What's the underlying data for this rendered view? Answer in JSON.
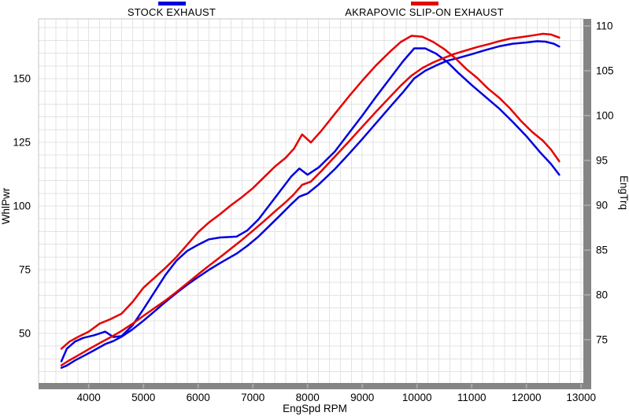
{
  "chart_data": {
    "type": "line",
    "title": "",
    "xlabel": "EngSpd  RPM",
    "ylabel_left": "WhlPwr",
    "ylabel_right": "EngTrq",
    "x_ticks": [
      4000,
      5000,
      6000,
      7000,
      8000,
      9000,
      10000,
      11000,
      12000,
      13000
    ],
    "left_ticks": [
      150,
      125,
      100,
      75,
      50
    ],
    "right_ticks": [
      110,
      105,
      100,
      95,
      90,
      85,
      80,
      75
    ],
    "x_range": [
      3090,
      13150
    ],
    "left_axis_range": [
      30.6,
      173.5
    ],
    "right_axis_range": [
      70.2,
      110.8
    ],
    "grid": true,
    "grid_step_rpm": 200,
    "grid_step_left": 5,
    "legend_position": "top",
    "colors": {
      "stock": "#0000e0",
      "akrapovic": "#e60000",
      "axis_bar": "#858585",
      "axis_notch": "#a6a6a6",
      "grid": "#e3e3e3",
      "plot_border": "#c4c4c4",
      "text": "#000000"
    },
    "series": [
      {
        "name": "STOCK EXHAUST",
        "color": "#0000e0",
        "power_axis": "left",
        "power_hp": [
          [
            3500,
            36.5
          ],
          [
            3600,
            37.4
          ],
          [
            3750,
            39.4
          ],
          [
            3900,
            41.1
          ],
          [
            4100,
            43.4
          ],
          [
            4300,
            45.8
          ],
          [
            4450,
            47.0
          ],
          [
            4600,
            48.7
          ],
          [
            4800,
            51.6
          ],
          [
            5000,
            55.0
          ],
          [
            5200,
            58.6
          ],
          [
            5400,
            62.3
          ],
          [
            5600,
            65.8
          ],
          [
            5800,
            69.1
          ],
          [
            6000,
            72.1
          ],
          [
            6200,
            75.0
          ],
          [
            6400,
            77.6
          ],
          [
            6700,
            81.3
          ],
          [
            6900,
            84.4
          ],
          [
            7100,
            88.0
          ],
          [
            7300,
            92.2
          ],
          [
            7500,
            96.4
          ],
          [
            7700,
            100.7
          ],
          [
            7850,
            103.7
          ],
          [
            8000,
            104.9
          ],
          [
            8200,
            108.4
          ],
          [
            8500,
            114.5
          ],
          [
            8750,
            120.3
          ],
          [
            9000,
            126.3
          ],
          [
            9250,
            132.5
          ],
          [
            9500,
            138.7
          ],
          [
            9750,
            144.8
          ],
          [
            9950,
            150.1
          ],
          [
            10150,
            153.1
          ],
          [
            10350,
            155.2
          ],
          [
            10550,
            157.0
          ],
          [
            10750,
            158.1
          ],
          [
            11000,
            159.6
          ],
          [
            11250,
            161.2
          ],
          [
            11500,
            162.7
          ],
          [
            11750,
            163.7
          ],
          [
            12000,
            164.2
          ],
          [
            12200,
            164.7
          ],
          [
            12350,
            164.5
          ],
          [
            12500,
            163.7
          ],
          [
            12600,
            162.6
          ]
        ],
        "torque_axis": "right",
        "torque": [
          [
            3500,
            72.6
          ],
          [
            3600,
            74.0
          ],
          [
            3750,
            74.8
          ],
          [
            3900,
            75.2
          ],
          [
            4100,
            75.5
          ],
          [
            4300,
            75.9
          ],
          [
            4450,
            75.3
          ],
          [
            4600,
            75.4
          ],
          [
            4800,
            76.6
          ],
          [
            5000,
            78.4
          ],
          [
            5200,
            80.3
          ],
          [
            5400,
            82.2
          ],
          [
            5600,
            83.8
          ],
          [
            5800,
            84.9
          ],
          [
            6000,
            85.6
          ],
          [
            6200,
            86.2
          ],
          [
            6400,
            86.4
          ],
          [
            6700,
            86.5
          ],
          [
            6900,
            87.2
          ],
          [
            7100,
            88.4
          ],
          [
            7300,
            90.0
          ],
          [
            7500,
            91.6
          ],
          [
            7700,
            93.2
          ],
          [
            7850,
            94.1
          ],
          [
            8000,
            93.4
          ],
          [
            8200,
            94.2
          ],
          [
            8500,
            96.0
          ],
          [
            8750,
            98.0
          ],
          [
            9000,
            100.0
          ],
          [
            9250,
            102.1
          ],
          [
            9500,
            104.1
          ],
          [
            9750,
            106.1
          ],
          [
            9950,
            107.5
          ],
          [
            10150,
            107.5
          ],
          [
            10350,
            106.9
          ],
          [
            10550,
            106.0
          ],
          [
            10750,
            104.8
          ],
          [
            11000,
            103.4
          ],
          [
            11250,
            102.1
          ],
          [
            11500,
            100.8
          ],
          [
            11750,
            99.3
          ],
          [
            12000,
            97.7
          ],
          [
            12250,
            95.9
          ],
          [
            12450,
            94.6
          ],
          [
            12600,
            93.4
          ]
        ]
      },
      {
        "name": "AKRAPOVIC SLIP-ON EXHAUST",
        "color": "#e60000",
        "power_axis": "left",
        "power_hp": [
          [
            3500,
            37.5
          ],
          [
            3650,
            39.5
          ],
          [
            3800,
            41.3
          ],
          [
            4000,
            43.8
          ],
          [
            4200,
            46.2
          ],
          [
            4400,
            48.5
          ],
          [
            4600,
            51.0
          ],
          [
            4800,
            53.8
          ],
          [
            5000,
            56.9
          ],
          [
            5200,
            59.9
          ],
          [
            5400,
            62.9
          ],
          [
            5600,
            66.2
          ],
          [
            5800,
            69.7
          ],
          [
            6000,
            73.2
          ],
          [
            6200,
            76.6
          ],
          [
            6400,
            79.9
          ],
          [
            6600,
            83.3
          ],
          [
            6800,
            86.7
          ],
          [
            7000,
            90.3
          ],
          [
            7200,
            94.0
          ],
          [
            7400,
            97.8
          ],
          [
            7600,
            101.5
          ],
          [
            7750,
            104.6
          ],
          [
            7900,
            108.3
          ],
          [
            8060,
            109.6
          ],
          [
            8250,
            113.7
          ],
          [
            8500,
            119.4
          ],
          [
            8750,
            125.2
          ],
          [
            9000,
            131.1
          ],
          [
            9250,
            137.0
          ],
          [
            9500,
            142.7
          ],
          [
            9700,
            147.2
          ],
          [
            9900,
            151.2
          ],
          [
            10100,
            154.2
          ],
          [
            10300,
            156.4
          ],
          [
            10500,
            158.2
          ],
          [
            10700,
            159.8
          ],
          [
            10900,
            161.1
          ],
          [
            11100,
            162.4
          ],
          [
            11300,
            163.5
          ],
          [
            11500,
            164.7
          ],
          [
            11700,
            165.7
          ],
          [
            11900,
            166.3
          ],
          [
            12100,
            166.9
          ],
          [
            12300,
            167.6
          ],
          [
            12450,
            167.3
          ],
          [
            12600,
            166.1
          ]
        ],
        "torque_axis": "right",
        "torque": [
          [
            3500,
            74.0
          ],
          [
            3650,
            74.8
          ],
          [
            3800,
            75.3
          ],
          [
            4000,
            75.9
          ],
          [
            4200,
            76.8
          ],
          [
            4400,
            77.3
          ],
          [
            4600,
            77.9
          ],
          [
            4800,
            79.2
          ],
          [
            5000,
            80.8
          ],
          [
            5200,
            81.9
          ],
          [
            5400,
            83.0
          ],
          [
            5600,
            84.2
          ],
          [
            5800,
            85.6
          ],
          [
            6000,
            87.0
          ],
          [
            6200,
            88.1
          ],
          [
            6400,
            89.0
          ],
          [
            6600,
            90.0
          ],
          [
            6800,
            90.9
          ],
          [
            7000,
            91.9
          ],
          [
            7200,
            93.1
          ],
          [
            7400,
            94.3
          ],
          [
            7600,
            95.3
          ],
          [
            7750,
            96.3
          ],
          [
            7900,
            97.9
          ],
          [
            8060,
            97.0
          ],
          [
            8250,
            98.3
          ],
          [
            8500,
            100.2
          ],
          [
            8750,
            102.1
          ],
          [
            9000,
            103.9
          ],
          [
            9250,
            105.6
          ],
          [
            9500,
            107.1
          ],
          [
            9700,
            108.2
          ],
          [
            9900,
            108.9
          ],
          [
            10100,
            108.8
          ],
          [
            10300,
            108.2
          ],
          [
            10500,
            107.4
          ],
          [
            10700,
            106.4
          ],
          [
            10900,
            105.2
          ],
          [
            11100,
            104.2
          ],
          [
            11300,
            103.0
          ],
          [
            11500,
            102.0
          ],
          [
            11700,
            100.8
          ],
          [
            11900,
            99.4
          ],
          [
            12100,
            98.2
          ],
          [
            12300,
            97.2
          ],
          [
            12450,
            96.2
          ],
          [
            12600,
            94.9
          ]
        ]
      }
    ]
  }
}
